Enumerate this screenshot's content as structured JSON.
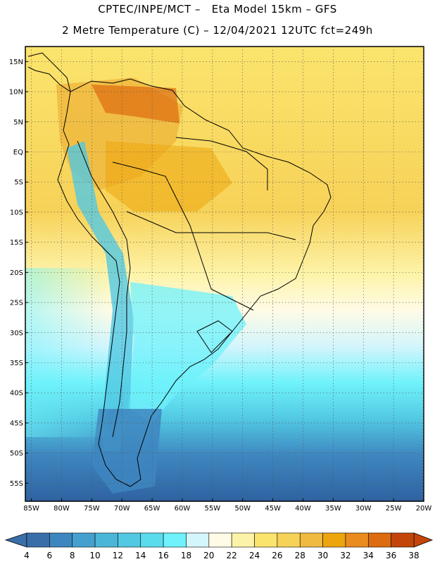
{
  "header": {
    "line1": "CPTEC/INPE/MCT –   Eta Model 15km – GFS",
    "line2": "2 Metre Temperature (C) – 12/04/2021 12UTC fct=249h"
  },
  "axes": {
    "lat_labels": [
      "15N",
      "10N",
      "5N",
      "EQ",
      "5S",
      "10S",
      "15S",
      "20S",
      "25S",
      "30S",
      "35S",
      "40S",
      "45S",
      "50S",
      "55S"
    ],
    "lon_labels": [
      "85W",
      "80W",
      "75W",
      "70W",
      "65W",
      "60W",
      "55W",
      "50W",
      "45W",
      "40W",
      "35W",
      "30W",
      "25W",
      "20W"
    ],
    "lat_range": [
      17.5,
      -58
    ],
    "lon_range": [
      -86,
      -20
    ]
  },
  "colorbar": {
    "ticks": [
      "4",
      "6",
      "8",
      "10",
      "12",
      "14",
      "16",
      "18",
      "20",
      "22",
      "24",
      "26",
      "28",
      "30",
      "32",
      "34",
      "36",
      "38"
    ],
    "colors": [
      "#3a6ea9",
      "#3e86bf",
      "#44a0ce",
      "#4cb6d8",
      "#52c8e2",
      "#5adced",
      "#6ff2fb",
      "#d3f5fc",
      "#fffbe6",
      "#fdf3a8",
      "#fbe46d",
      "#f7d258",
      "#f0b93f",
      "#eda50d",
      "#e98b1f",
      "#dd6b10",
      "#c34509"
    ],
    "below_color": "#3a6ea9",
    "above_color": "#c34509"
  }
}
